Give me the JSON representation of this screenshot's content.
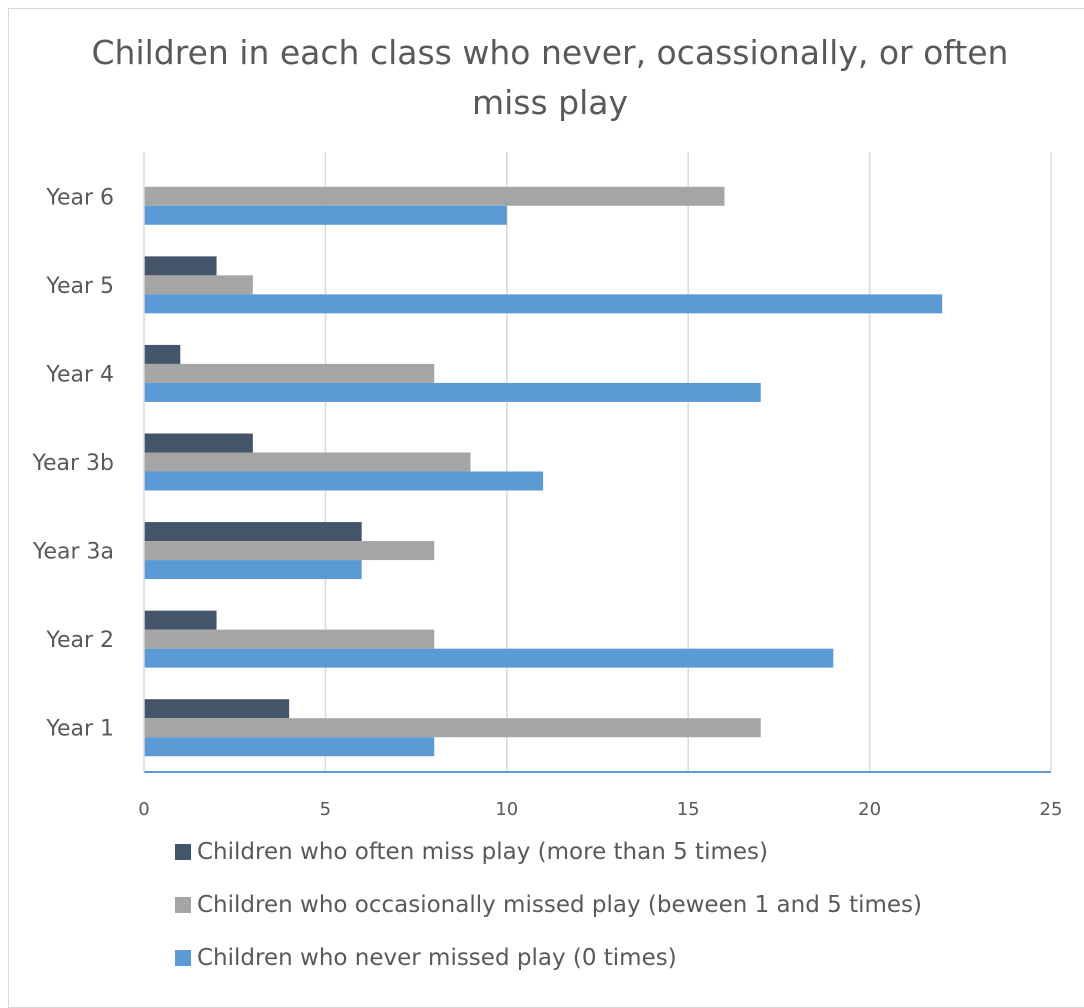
{
  "chart_data": {
    "type": "bar",
    "orientation": "horizontal",
    "title": "Children in each class who never, ocassionally, or often miss play",
    "title_lines": [
      "Children in each class who never, ocassionally, or often",
      "miss play"
    ],
    "categories": [
      "Year 1",
      "Year 2",
      "Year 3a",
      "Year 3b",
      "Year 4",
      "Year 5",
      "Year 6"
    ],
    "series": [
      {
        "name": "Children who often miss play (more than 5 times)",
        "color": "#44546a",
        "values": [
          4,
          2,
          6,
          3,
          1,
          2,
          0
        ]
      },
      {
        "name": "Children who occasionally missed play (beween 1 and 5 times)",
        "color": "#a5a5a5",
        "values": [
          17,
          8,
          8,
          9,
          8,
          3,
          16
        ]
      },
      {
        "name": "Children who never missed play (0 times)",
        "color": "#5b9bd5",
        "values": [
          8,
          19,
          6,
          11,
          17,
          22,
          10
        ]
      }
    ],
    "xlim": [
      0,
      25
    ],
    "xticks": [
      0,
      5,
      10,
      15,
      20,
      25
    ],
    "xtick_labels": [
      "0",
      "5",
      "10",
      "15",
      "20",
      "25"
    ],
    "xlabel": "",
    "ylabel": "",
    "grid": "vertical",
    "legend_position": "bottom"
  }
}
